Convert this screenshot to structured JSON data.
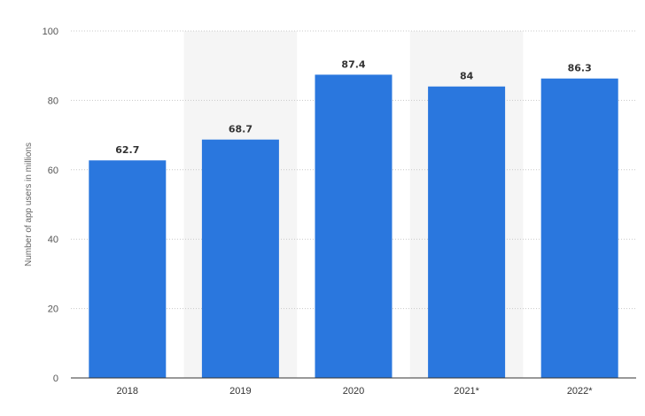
{
  "chart_data": {
    "type": "bar",
    "categories": [
      "2018",
      "2019",
      "2020",
      "2021*",
      "2022*"
    ],
    "values": [
      62.7,
      68.7,
      87.4,
      84,
      86.3
    ],
    "value_labels": [
      "62.7",
      "68.7",
      "87.4",
      "84",
      "86.3"
    ],
    "title": "",
    "xlabel": "",
    "ylabel": "Number of app users in millions",
    "ylim": [
      0,
      100
    ],
    "yticks": [
      0,
      20,
      40,
      60,
      80,
      100
    ],
    "grid": true,
    "alternating_band_shading": true,
    "colors": {
      "bar": "#2a77de",
      "band": "#f5f5f5",
      "grid": "#c8c8c8",
      "axis": "#333333"
    }
  }
}
